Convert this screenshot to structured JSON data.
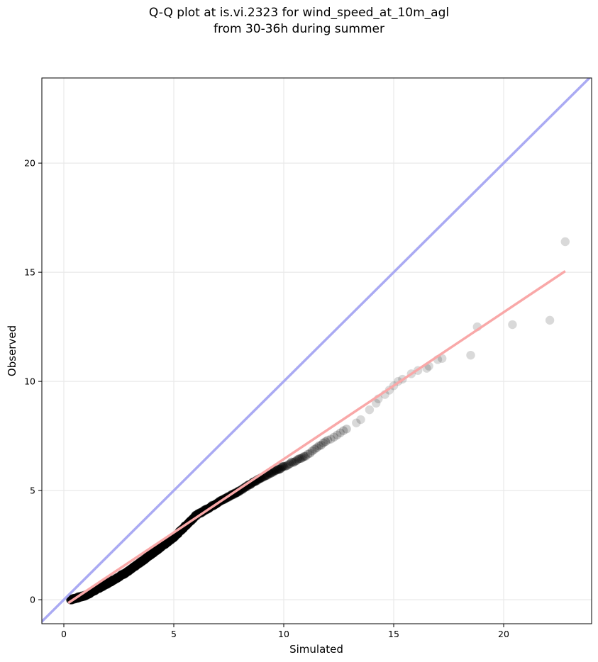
{
  "chart_data": {
    "type": "scatter",
    "title": "Q-Q plot at is.vi.2323 for wind_speed_at_10m_agl",
    "subtitle": "from 30-36h during summer",
    "xlabel": "Simulated",
    "ylabel": "Observed",
    "xlim": [
      -1.0,
      24.0
    ],
    "ylim": [
      -1.1,
      23.9
    ],
    "xticks": [
      0,
      5,
      10,
      15,
      20
    ],
    "yticks": [
      0,
      5,
      10,
      15,
      20
    ],
    "grid": true,
    "identity_line": {
      "color": "#aaaaf3"
    },
    "fit_line": {
      "x": [
        0.2,
        22.8
      ],
      "y": [
        -0.15,
        15.05
      ],
      "color": "#f9a8a8"
    },
    "point_color": "#000000",
    "segments": [
      {
        "x0": 0.3,
        "y0": 0.0,
        "x1": 1.0,
        "y1": 0.2,
        "n": 45,
        "alpha": 0.55
      },
      {
        "x0": 1.0,
        "y0": 0.2,
        "x1": 2.0,
        "y1": 0.75,
        "n": 60,
        "alpha": 0.55
      },
      {
        "x0": 2.0,
        "y0": 0.75,
        "x1": 3.0,
        "y1": 1.35,
        "n": 60,
        "alpha": 0.55
      },
      {
        "x0": 3.0,
        "y0": 1.35,
        "x1": 4.0,
        "y1": 2.1,
        "n": 60,
        "alpha": 0.55
      },
      {
        "x0": 4.0,
        "y0": 2.1,
        "x1": 5.0,
        "y1": 2.85,
        "n": 55,
        "alpha": 0.55
      },
      {
        "x0": 5.0,
        "y0": 2.85,
        "x1": 6.0,
        "y1": 3.85,
        "n": 55,
        "alpha": 0.55
      },
      {
        "x0": 6.0,
        "y0": 3.85,
        "x1": 7.0,
        "y1": 4.45,
        "n": 40,
        "alpha": 0.5
      },
      {
        "x0": 7.0,
        "y0": 4.45,
        "x1": 8.0,
        "y1": 5.0,
        "n": 35,
        "alpha": 0.45
      },
      {
        "x0": 8.0,
        "y0": 5.0,
        "x1": 9.0,
        "y1": 5.6,
        "n": 28,
        "alpha": 0.4
      },
      {
        "x0": 9.0,
        "y0": 5.6,
        "x1": 10.0,
        "y1": 6.1,
        "n": 22,
        "alpha": 0.35
      },
      {
        "x0": 10.0,
        "y0": 6.1,
        "x1": 11.0,
        "y1": 6.6,
        "n": 14,
        "alpha": 0.3
      },
      {
        "x0": 11.0,
        "y0": 6.6,
        "x1": 12.0,
        "y1": 7.3,
        "n": 10,
        "alpha": 0.25
      },
      {
        "x0": 12.0,
        "y0": 7.3,
        "x1": 13.0,
        "y1": 7.9,
        "n": 7,
        "alpha": 0.2
      }
    ],
    "sparse_points": [
      {
        "x": 13.3,
        "y": 8.1
      },
      {
        "x": 13.5,
        "y": 8.25
      },
      {
        "x": 13.9,
        "y": 8.7
      },
      {
        "x": 14.2,
        "y": 9.0
      },
      {
        "x": 14.3,
        "y": 9.2
      },
      {
        "x": 14.6,
        "y": 9.4
      },
      {
        "x": 14.8,
        "y": 9.6
      },
      {
        "x": 15.0,
        "y": 9.8
      },
      {
        "x": 15.2,
        "y": 10.0
      },
      {
        "x": 15.4,
        "y": 10.1
      },
      {
        "x": 15.8,
        "y": 10.35
      },
      {
        "x": 16.1,
        "y": 10.5
      },
      {
        "x": 16.5,
        "y": 10.6
      },
      {
        "x": 16.6,
        "y": 10.7
      },
      {
        "x": 17.0,
        "y": 11.0
      },
      {
        "x": 17.2,
        "y": 11.05
      },
      {
        "x": 18.5,
        "y": 11.2
      },
      {
        "x": 18.8,
        "y": 12.5
      },
      {
        "x": 20.4,
        "y": 12.6
      },
      {
        "x": 22.1,
        "y": 12.8
      },
      {
        "x": 22.8,
        "y": 16.4
      }
    ],
    "sparse_alpha": 0.15
  }
}
